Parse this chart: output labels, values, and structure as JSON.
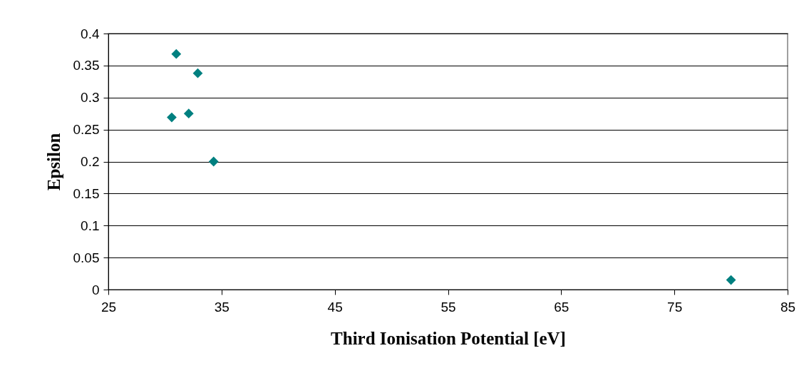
{
  "chart_data": {
    "type": "scatter",
    "xlabel": "Third Ionisation Potential [eV]",
    "ylabel": "Epsilon",
    "x": [
      31.0,
      32.9,
      30.6,
      32.1,
      34.3,
      80.0
    ],
    "series": [
      {
        "color": "#008080",
        "values": [
          0.368,
          0.338,
          0.269,
          0.275,
          0.2,
          0.015
        ]
      }
    ],
    "xlim": [
      25,
      85
    ],
    "xticks": [
      25,
      35,
      45,
      55,
      65,
      75,
      85
    ],
    "ylim": [
      0,
      0.4
    ],
    "yticks": [
      0,
      0.05,
      0.1,
      0.15,
      0.2,
      0.25,
      0.3,
      0.35,
      0.4
    ],
    "grid": "y",
    "marker": "diamond"
  }
}
